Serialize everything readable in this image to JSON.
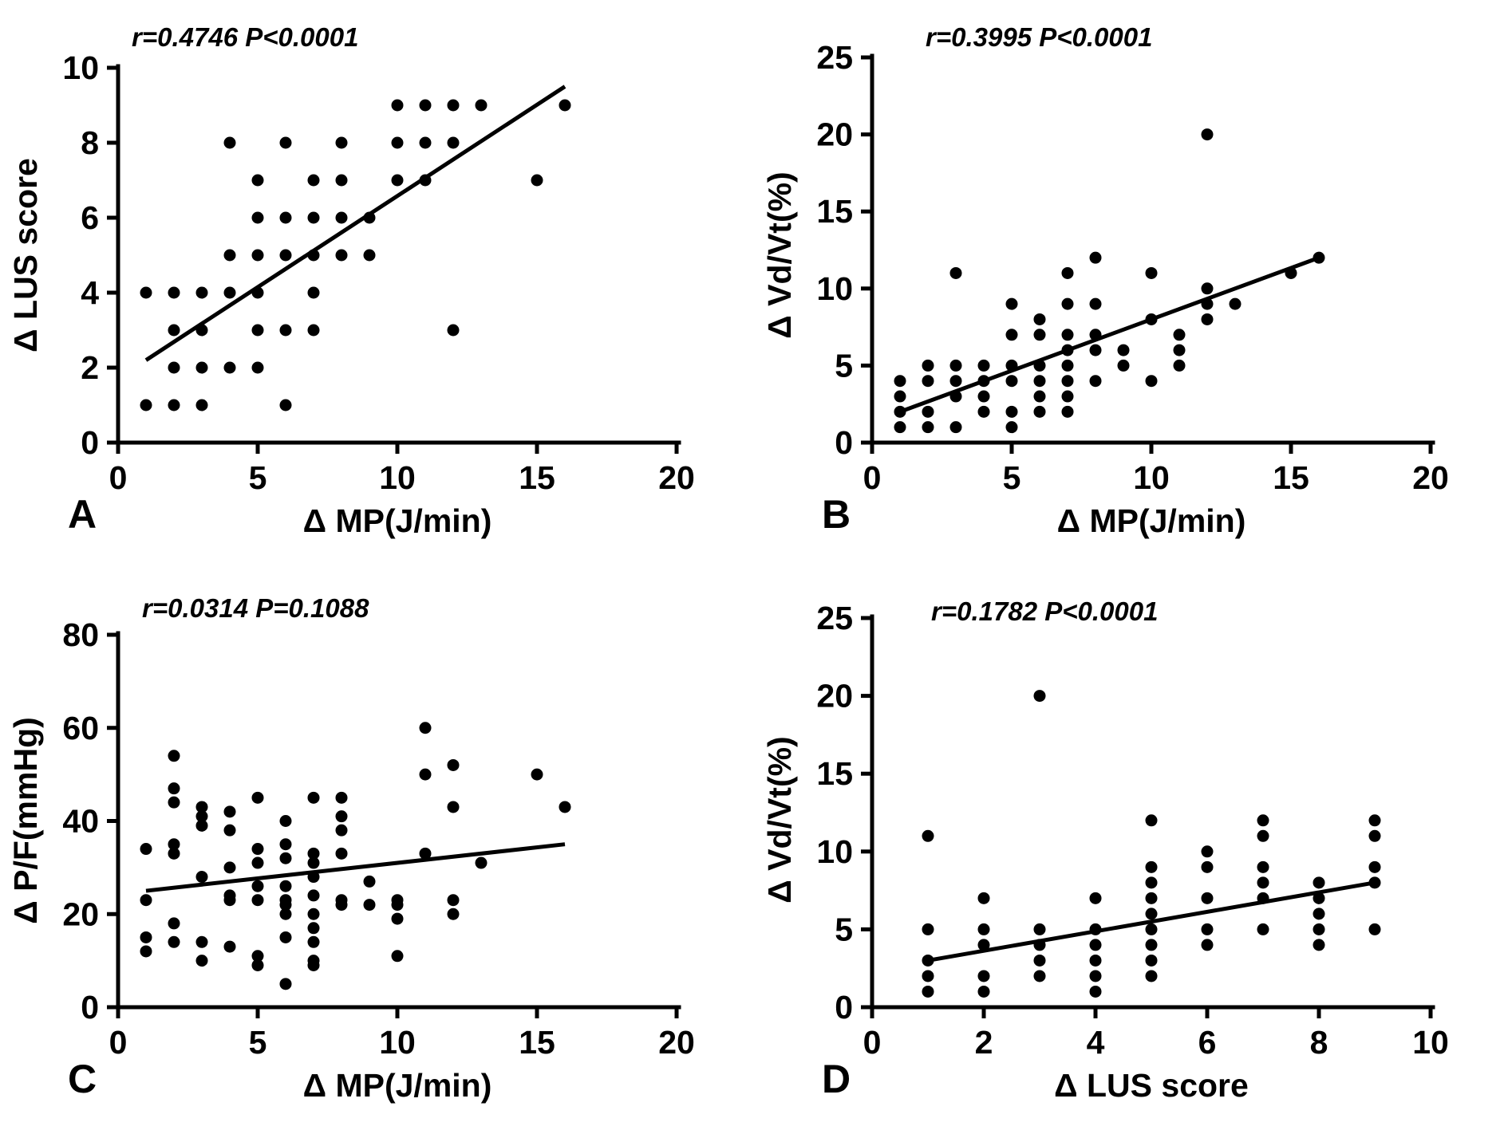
{
  "figure": {
    "background_color": "#ffffff",
    "ink_color": "#000000"
  },
  "chart_data": [
    {
      "type": "scatter",
      "letter": "A",
      "title": "r=0.4746 P<0.0001",
      "xlabel": "Δ MP(J/min)",
      "ylabel": "Δ LUS score",
      "xlim": [
        0,
        20
      ],
      "ylim": [
        0,
        10
      ],
      "x_ticks": [
        0,
        5,
        10,
        15,
        20
      ],
      "y_ticks": [
        0,
        2,
        4,
        6,
        8,
        10
      ],
      "regression_line": {
        "x1": 1,
        "y1": 2.2,
        "x2": 16,
        "y2": 9.5
      },
      "points": [
        [
          1,
          1
        ],
        [
          2,
          1
        ],
        [
          3,
          1
        ],
        [
          6,
          1
        ],
        [
          2,
          2
        ],
        [
          3,
          2
        ],
        [
          4,
          2
        ],
        [
          5,
          2
        ],
        [
          2,
          3
        ],
        [
          3,
          3
        ],
        [
          5,
          3
        ],
        [
          6,
          3
        ],
        [
          7,
          3
        ],
        [
          12,
          3
        ],
        [
          1,
          4
        ],
        [
          2,
          4
        ],
        [
          3,
          4
        ],
        [
          4,
          4
        ],
        [
          5,
          4
        ],
        [
          7,
          4
        ],
        [
          4,
          5
        ],
        [
          5,
          5
        ],
        [
          6,
          5
        ],
        [
          7,
          5
        ],
        [
          8,
          5
        ],
        [
          9,
          5
        ],
        [
          5,
          6
        ],
        [
          6,
          6
        ],
        [
          7,
          6
        ],
        [
          8,
          6
        ],
        [
          9,
          6
        ],
        [
          5,
          7
        ],
        [
          7,
          7
        ],
        [
          8,
          7
        ],
        [
          10,
          7
        ],
        [
          11,
          7
        ],
        [
          15,
          7
        ],
        [
          4,
          8
        ],
        [
          6,
          8
        ],
        [
          8,
          8
        ],
        [
          10,
          8
        ],
        [
          11,
          8
        ],
        [
          12,
          8
        ],
        [
          10,
          9
        ],
        [
          11,
          9
        ],
        [
          12,
          9
        ],
        [
          13,
          9
        ],
        [
          16,
          9
        ]
      ]
    },
    {
      "type": "scatter",
      "letter": "B",
      "title": "r=0.3995 P<0.0001",
      "xlabel": "Δ MP(J/min)",
      "ylabel": "Δ Vd/Vt(%)",
      "xlim": [
        0,
        20
      ],
      "ylim": [
        0,
        25
      ],
      "x_ticks": [
        0,
        5,
        10,
        15,
        20
      ],
      "y_ticks": [
        0,
        5,
        10,
        15,
        20,
        25
      ],
      "regression_line": {
        "x1": 1,
        "y1": 2,
        "x2": 16,
        "y2": 12
      },
      "points": [
        [
          1,
          1
        ],
        [
          1,
          2
        ],
        [
          1,
          3
        ],
        [
          1,
          4
        ],
        [
          2,
          1
        ],
        [
          2,
          2
        ],
        [
          2,
          4
        ],
        [
          2,
          5
        ],
        [
          3,
          1
        ],
        [
          3,
          3
        ],
        [
          3,
          4
        ],
        [
          3,
          5
        ],
        [
          3,
          11
        ],
        [
          4,
          2
        ],
        [
          4,
          3
        ],
        [
          4,
          4
        ],
        [
          4,
          5
        ],
        [
          5,
          1
        ],
        [
          5,
          2
        ],
        [
          5,
          4
        ],
        [
          5,
          5
        ],
        [
          5,
          7
        ],
        [
          5,
          9
        ],
        [
          6,
          2
        ],
        [
          6,
          3
        ],
        [
          6,
          4
        ],
        [
          6,
          5
        ],
        [
          6,
          7
        ],
        [
          6,
          8
        ],
        [
          7,
          2
        ],
        [
          7,
          3
        ],
        [
          7,
          4
        ],
        [
          7,
          5
        ],
        [
          7,
          6
        ],
        [
          7,
          7
        ],
        [
          7,
          9
        ],
        [
          7,
          11
        ],
        [
          8,
          4
        ],
        [
          8,
          6
        ],
        [
          8,
          7
        ],
        [
          8,
          9
        ],
        [
          8,
          12
        ],
        [
          9,
          5
        ],
        [
          9,
          6
        ],
        [
          10,
          4
        ],
        [
          10,
          8
        ],
        [
          10,
          11
        ],
        [
          11,
          5
        ],
        [
          11,
          6
        ],
        [
          11,
          7
        ],
        [
          12,
          8
        ],
        [
          12,
          9
        ],
        [
          12,
          10
        ],
        [
          12,
          20
        ],
        [
          13,
          9
        ],
        [
          15,
          11
        ],
        [
          16,
          12
        ]
      ]
    },
    {
      "type": "scatter",
      "letter": "C",
      "title": "r=0.0314 P=0.1088",
      "xlabel": "Δ MP(J/min)",
      "ylabel": "Δ P/F(mmHg)",
      "xlim": [
        0,
        20
      ],
      "ylim": [
        0,
        80
      ],
      "x_ticks": [
        0,
        5,
        10,
        15,
        20
      ],
      "y_ticks": [
        0,
        20,
        40,
        60,
        80
      ],
      "regression_line": {
        "x1": 1,
        "y1": 25,
        "x2": 16,
        "y2": 35
      },
      "points": [
        [
          1,
          34
        ],
        [
          1,
          23
        ],
        [
          1,
          15
        ],
        [
          1,
          12
        ],
        [
          2,
          54
        ],
        [
          2,
          47
        ],
        [
          2,
          44
        ],
        [
          2,
          35
        ],
        [
          2,
          33
        ],
        [
          2,
          18
        ],
        [
          2,
          14
        ],
        [
          3,
          43
        ],
        [
          3,
          41
        ],
        [
          3,
          39
        ],
        [
          3,
          28
        ],
        [
          3,
          14
        ],
        [
          3,
          10
        ],
        [
          4,
          42
        ],
        [
          4,
          38
        ],
        [
          4,
          30
        ],
        [
          4,
          24
        ],
        [
          4,
          23
        ],
        [
          4,
          13
        ],
        [
          5,
          45
        ],
        [
          5,
          34
        ],
        [
          5,
          31
        ],
        [
          5,
          26
        ],
        [
          5,
          23
        ],
        [
          5,
          11
        ],
        [
          5,
          9
        ],
        [
          6,
          40
        ],
        [
          6,
          35
        ],
        [
          6,
          32
        ],
        [
          6,
          26
        ],
        [
          6,
          23
        ],
        [
          6,
          22
        ],
        [
          6,
          20
        ],
        [
          6,
          15
        ],
        [
          6,
          5
        ],
        [
          7,
          45
        ],
        [
          7,
          33
        ],
        [
          7,
          31
        ],
        [
          7,
          28
        ],
        [
          7,
          24
        ],
        [
          7,
          20
        ],
        [
          7,
          17
        ],
        [
          7,
          14
        ],
        [
          7,
          10
        ],
        [
          7,
          9
        ],
        [
          8,
          45
        ],
        [
          8,
          41
        ],
        [
          8,
          38
        ],
        [
          8,
          33
        ],
        [
          8,
          23
        ],
        [
          8,
          22
        ],
        [
          9,
          27
        ],
        [
          9,
          22
        ],
        [
          10,
          23
        ],
        [
          10,
          22
        ],
        [
          10,
          19
        ],
        [
          10,
          11
        ],
        [
          11,
          60
        ],
        [
          11,
          50
        ],
        [
          11,
          33
        ],
        [
          12,
          52
        ],
        [
          12,
          43
        ],
        [
          12,
          23
        ],
        [
          12,
          20
        ],
        [
          13,
          31
        ],
        [
          15,
          50
        ],
        [
          16,
          43
        ]
      ]
    },
    {
      "type": "scatter",
      "letter": "D",
      "title": "r=0.1782 P<0.0001",
      "xlabel": "Δ LUS score",
      "ylabel": "Δ Vd/Vt(%)",
      "xlim": [
        0,
        10
      ],
      "ylim": [
        0,
        25
      ],
      "x_ticks": [
        0,
        2,
        4,
        6,
        8,
        10
      ],
      "y_ticks": [
        0,
        5,
        10,
        15,
        20,
        25
      ],
      "regression_line": {
        "x1": 1,
        "y1": 3,
        "x2": 9,
        "y2": 8
      },
      "points": [
        [
          1,
          11
        ],
        [
          1,
          5
        ],
        [
          1,
          3
        ],
        [
          1,
          2
        ],
        [
          1,
          1
        ],
        [
          2,
          7
        ],
        [
          2,
          5
        ],
        [
          2,
          4
        ],
        [
          2,
          2
        ],
        [
          2,
          1
        ],
        [
          3,
          20
        ],
        [
          3,
          5
        ],
        [
          3,
          4
        ],
        [
          3,
          3
        ],
        [
          3,
          2
        ],
        [
          4,
          7
        ],
        [
          4,
          5
        ],
        [
          4,
          4
        ],
        [
          4,
          3
        ],
        [
          4,
          2
        ],
        [
          4,
          1
        ],
        [
          5,
          12
        ],
        [
          5,
          9
        ],
        [
          5,
          8
        ],
        [
          5,
          7
        ],
        [
          5,
          6
        ],
        [
          5,
          5
        ],
        [
          5,
          4
        ],
        [
          5,
          3
        ],
        [
          5,
          2
        ],
        [
          6,
          10
        ],
        [
          6,
          9
        ],
        [
          6,
          7
        ],
        [
          6,
          5
        ],
        [
          6,
          4
        ],
        [
          7,
          12
        ],
        [
          7,
          11
        ],
        [
          7,
          9
        ],
        [
          7,
          8
        ],
        [
          7,
          7
        ],
        [
          7,
          5
        ],
        [
          8,
          8
        ],
        [
          8,
          7
        ],
        [
          8,
          6
        ],
        [
          8,
          5
        ],
        [
          8,
          4
        ],
        [
          9,
          12
        ],
        [
          9,
          11
        ],
        [
          9,
          9
        ],
        [
          9,
          8
        ],
        [
          9,
          5
        ]
      ]
    }
  ]
}
